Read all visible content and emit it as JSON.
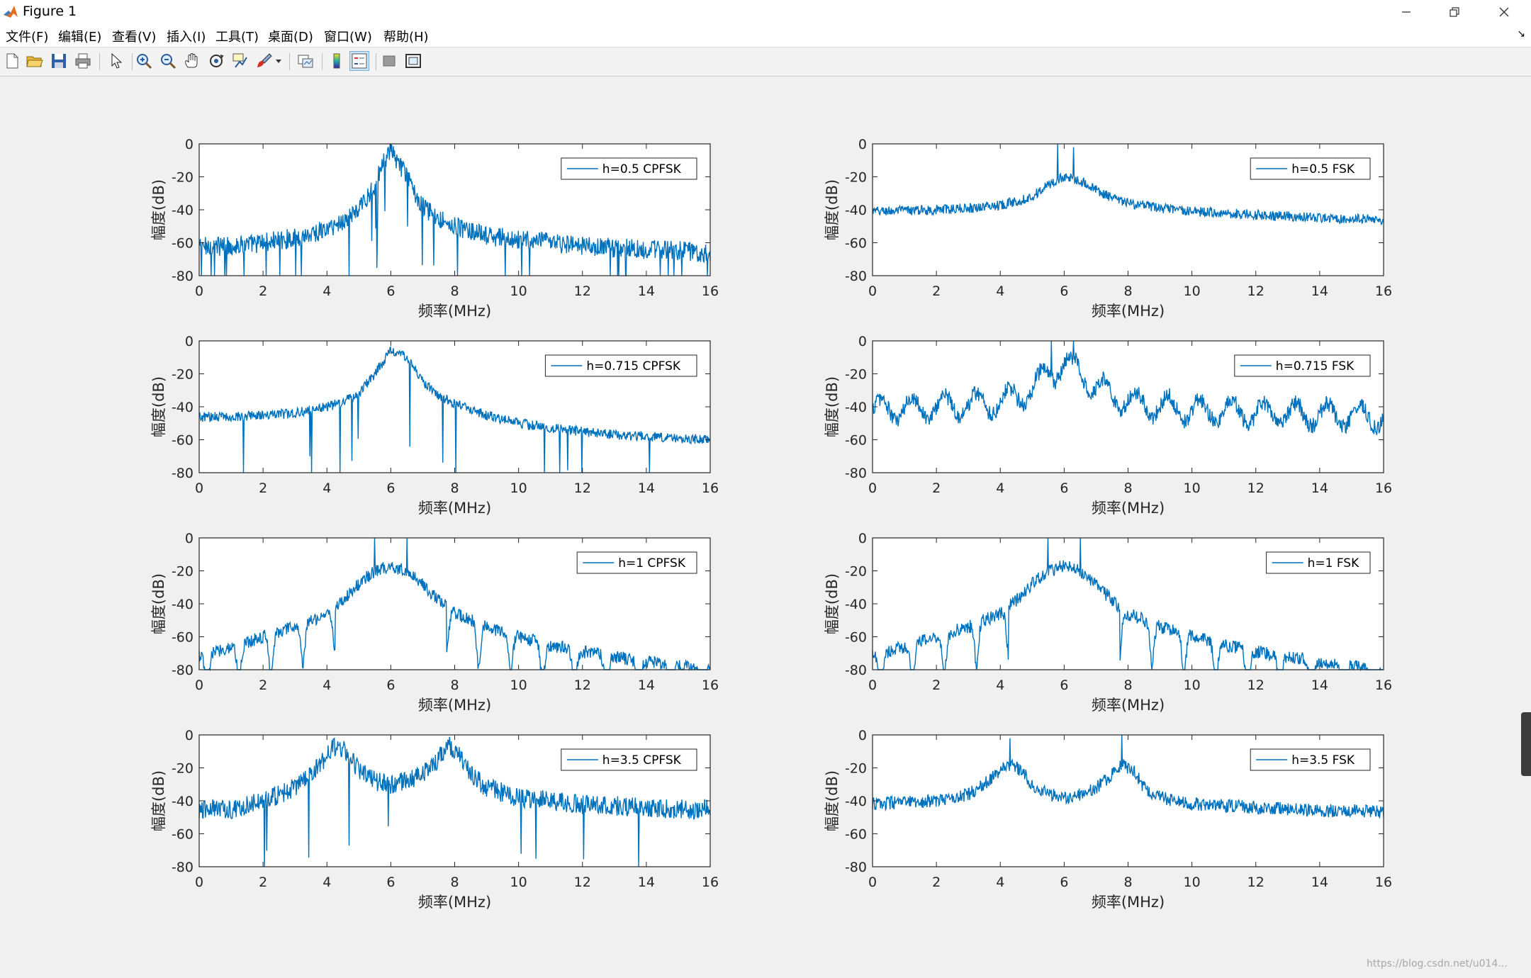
{
  "window": {
    "title": "Figure 1",
    "controls": [
      "minimize",
      "restore",
      "close"
    ]
  },
  "menu": {
    "items": [
      "文件(F)",
      "编辑(E)",
      "查看(V)",
      "插入(I)",
      "工具(T)",
      "桌面(D)",
      "窗口(W)",
      "帮助(H)"
    ],
    "overflow_icon": "dock-arrow-icon"
  },
  "toolbar": {
    "buttons": [
      {
        "name": "new-figure",
        "icon": "new-file-icon"
      },
      {
        "name": "open-file",
        "icon": "folder-open-icon"
      },
      {
        "name": "save-figure",
        "icon": "save-icon"
      },
      {
        "name": "print-figure",
        "icon": "printer-icon"
      },
      {
        "name": "edit-plot",
        "icon": "pointer-arrow-icon"
      },
      {
        "name": "zoom-in",
        "icon": "zoom-in-icon"
      },
      {
        "name": "zoom-out",
        "icon": "zoom-out-icon"
      },
      {
        "name": "pan",
        "icon": "hand-icon"
      },
      {
        "name": "rotate-3d",
        "icon": "rotate-icon"
      },
      {
        "name": "data-cursor",
        "icon": "data-tip-icon"
      },
      {
        "name": "brush",
        "icon": "brush-icon"
      },
      {
        "name": "link-plot",
        "icon": "link-plot-icon"
      },
      {
        "name": "insert-colorbar",
        "icon": "colorbar-icon"
      },
      {
        "name": "insert-legend",
        "icon": "legend-icon"
      },
      {
        "name": "hide-plot-tools",
        "icon": "hide-tools-icon"
      },
      {
        "name": "show-plot-tools",
        "icon": "show-tools-icon"
      }
    ]
  },
  "colors": {
    "line": "#0072bd",
    "figure_bg": "#f0f0f0",
    "axes_bg": "#ffffff"
  },
  "chart_data": [
    {
      "type": "line",
      "legend": "h=0.5 CPFSK",
      "xlabel": "频率(MHz)",
      "ylabel": "幅度(dB)",
      "xlim": [
        0,
        16
      ],
      "ylim": [
        -80,
        0
      ],
      "xticks": [
        0,
        2,
        4,
        6,
        8,
        10,
        12,
        14,
        16
      ],
      "yticks": [
        0,
        -20,
        -40,
        -60,
        -80
      ],
      "legend_position": "top-right",
      "profile": {
        "x": [
          0,
          1,
          2,
          3,
          4,
          4.5,
          5,
          5.5,
          5.8,
          6,
          6.2,
          6.5,
          7,
          7.5,
          8,
          9,
          10,
          11,
          12,
          13,
          14,
          15,
          16
        ],
        "y": [
          -62,
          -62,
          -60,
          -57,
          -52,
          -47,
          -40,
          -25,
          -10,
          -5,
          -10,
          -20,
          -38,
          -45,
          -50,
          -56,
          -58,
          -60,
          -62,
          -63,
          -64,
          -65,
          -66
        ]
      },
      "noise": 6,
      "nulls": 40,
      "spikes": []
    },
    {
      "type": "line",
      "legend": "h=0.5 FSK",
      "xlabel": "频率(MHz)",
      "ylabel": "幅度(dB)",
      "xlim": [
        0,
        16
      ],
      "ylim": [
        -80,
        0
      ],
      "xticks": [
        0,
        2,
        4,
        6,
        8,
        10,
        12,
        14,
        16
      ],
      "yticks": [
        0,
        -20,
        -40,
        -60,
        -80
      ],
      "legend_position": "top-right",
      "profile": {
        "x": [
          0,
          2,
          3,
          4,
          4.5,
          5,
          5.5,
          6,
          6.5,
          7,
          7.5,
          8,
          9,
          10,
          12,
          14,
          16
        ],
        "y": [
          -41,
          -40,
          -39,
          -37,
          -35,
          -32,
          -25,
          -20,
          -22,
          -28,
          -33,
          -36,
          -39,
          -41,
          -43,
          -45,
          -46
        ]
      },
      "noise": 3,
      "nulls": 0,
      "spikes": [
        {
          "x": 5.8,
          "y": 0
        },
        {
          "x": 6.3,
          "y": -2
        }
      ]
    },
    {
      "type": "line",
      "legend": "h=0.715 CPFSK",
      "xlabel": "频率(MHz)",
      "ylabel": "幅度(dB)",
      "xlim": [
        0,
        16
      ],
      "ylim": [
        -80,
        0
      ],
      "xticks": [
        0,
        2,
        4,
        6,
        8,
        10,
        12,
        14,
        16
      ],
      "yticks": [
        0,
        -20,
        -40,
        -60,
        -80
      ],
      "legend_position": "top-right",
      "profile": {
        "x": [
          0,
          1,
          2,
          3,
          4,
          4.5,
          5,
          5.5,
          6,
          6.5,
          7,
          7.5,
          8,
          9,
          10,
          11,
          12,
          13,
          14,
          15,
          16
        ],
        "y": [
          -46,
          -46,
          -45,
          -44,
          -40,
          -37,
          -32,
          -20,
          -6,
          -10,
          -25,
          -33,
          -38,
          -45,
          -50,
          -53,
          -55,
          -57,
          -58,
          -59,
          -60
        ]
      },
      "noise": 3,
      "nulls": 12,
      "spikes": []
    },
    {
      "type": "line",
      "legend": "h=0.715 FSK",
      "xlabel": "频率(MHz)",
      "ylabel": "幅度(dB)",
      "xlim": [
        0,
        16
      ],
      "ylim": [
        -80,
        0
      ],
      "xticks": [
        0,
        2,
        4,
        6,
        8,
        10,
        12,
        14,
        16
      ],
      "yticks": [
        0,
        -20,
        -40,
        -60,
        -80
      ],
      "legend_position": "top-right",
      "profile": {
        "x": [
          0,
          2,
          4,
          5,
          5.5,
          6,
          6.5,
          7,
          8,
          10,
          12,
          14,
          16
        ],
        "y": [
          -42,
          -40,
          -37,
          -30,
          -20,
          -15,
          -18,
          -28,
          -37,
          -42,
          -44,
          -45,
          -46
        ]
      },
      "noise": 5,
      "nulls": 0,
      "spikes": [
        {
          "x": 5.6,
          "y": 0
        },
        {
          "x": 6.3,
          "y": 0
        }
      ],
      "ripple": {
        "amp": 7,
        "period": 1
      }
    },
    {
      "type": "line",
      "legend": "h=1 CPFSK",
      "xlabel": "频率(MHz)",
      "ylabel": "幅度(dB)",
      "xlim": [
        0,
        16
      ],
      "ylim": [
        -80,
        0
      ],
      "xticks": [
        0,
        2,
        4,
        6,
        8,
        10,
        12,
        14,
        16
      ],
      "yticks": [
        0,
        -20,
        -40,
        -60,
        -80
      ],
      "legend_position": "top-right",
      "profile": {
        "x": [
          0,
          1,
          2,
          3,
          4,
          4.5,
          5,
          5.5,
          6,
          6.5,
          7,
          7.5,
          8,
          9,
          10,
          11,
          12,
          13,
          14,
          15,
          16
        ],
        "y": [
          -72,
          -66,
          -60,
          -54,
          -46,
          -38,
          -28,
          -20,
          -17,
          -20,
          -28,
          -38,
          -46,
          -54,
          -60,
          -65,
          -69,
          -72,
          -75,
          -78,
          -80
        ]
      },
      "noise": 4,
      "nulls": 0,
      "spikes": [
        {
          "x": 5.5,
          "y": 0
        },
        {
          "x": 6.5,
          "y": 0
        }
      ],
      "lobes": {
        "center": 6,
        "halfwidth": 1.75,
        "spacing": 1
      }
    },
    {
      "type": "line",
      "legend": "h=1 FSK",
      "xlabel": "频率(MHz)",
      "ylabel": "幅度(dB)",
      "xlim": [
        0,
        16
      ],
      "ylim": [
        -80,
        0
      ],
      "xticks": [
        0,
        2,
        4,
        6,
        8,
        10,
        12,
        14,
        16
      ],
      "yticks": [
        0,
        -20,
        -40,
        -60,
        -80
      ],
      "legend_position": "top-right",
      "profile": {
        "x": [
          0,
          1,
          2,
          3,
          4,
          4.5,
          5,
          5.5,
          6,
          6.5,
          7,
          7.5,
          8,
          9,
          10,
          11,
          12,
          13,
          14,
          15,
          16
        ],
        "y": [
          -72,
          -66,
          -60,
          -54,
          -46,
          -38,
          -28,
          -20,
          -17,
          -20,
          -28,
          -38,
          -46,
          -54,
          -60,
          -65,
          -69,
          -72,
          -75,
          -78,
          -80
        ]
      },
      "noise": 4,
      "nulls": 0,
      "spikes": [
        {
          "x": 5.5,
          "y": 0
        },
        {
          "x": 6.5,
          "y": 0
        }
      ],
      "lobes": {
        "center": 6,
        "halfwidth": 1.75,
        "spacing": 1
      }
    },
    {
      "type": "line",
      "legend": "h=3.5 CPFSK",
      "xlabel": "频率(MHz)",
      "ylabel": "幅度(dB)",
      "xlim": [
        0,
        16
      ],
      "ylim": [
        -80,
        0
      ],
      "xticks": [
        0,
        2,
        4,
        6,
        8,
        10,
        12,
        14,
        16
      ],
      "yticks": [
        0,
        -20,
        -40,
        -60,
        -80
      ],
      "legend_position": "top-right",
      "profile": {
        "x": [
          0,
          1,
          2,
          3,
          3.5,
          4,
          4.3,
          4.7,
          5,
          5.5,
          6,
          6.5,
          7,
          7.5,
          7.8,
          8.2,
          8.5,
          9,
          10,
          11,
          12,
          13,
          14,
          15,
          16
        ],
        "y": [
          -45,
          -45,
          -40,
          -32,
          -25,
          -12,
          -6,
          -12,
          -22,
          -28,
          -30,
          -28,
          -24,
          -14,
          -6,
          -12,
          -24,
          -32,
          -38,
          -40,
          -42,
          -43,
          -44,
          -45,
          -45
        ]
      },
      "noise": 6,
      "nulls": 6,
      "spikes": []
    },
    {
      "type": "line",
      "legend": "h=3.5 FSK",
      "xlabel": "频率(MHz)",
      "ylabel": "幅度(dB)",
      "xlim": [
        0,
        16
      ],
      "ylim": [
        -80,
        0
      ],
      "xticks": [
        0,
        2,
        4,
        6,
        8,
        10,
        12,
        14,
        16
      ],
      "yticks": [
        0,
        -20,
        -40,
        -60,
        -80
      ],
      "legend_position": "top-right",
      "profile": {
        "x": [
          0,
          1,
          2,
          3,
          3.5,
          4,
          4.3,
          4.7,
          5,
          5.5,
          6,
          6.5,
          7,
          7.5,
          7.8,
          8.2,
          8.5,
          9,
          10,
          11,
          12,
          13,
          14,
          15,
          16
        ],
        "y": [
          -42,
          -41,
          -40,
          -36,
          -30,
          -22,
          -18,
          -22,
          -30,
          -36,
          -38,
          -36,
          -32,
          -24,
          -18,
          -22,
          -32,
          -38,
          -42,
          -43,
          -44,
          -45,
          -46,
          -46,
          -47
        ]
      },
      "noise": 4,
      "nulls": 0,
      "spikes": [
        {
          "x": 4.3,
          "y": -2
        },
        {
          "x": 7.8,
          "y": 0
        }
      ]
    }
  ]
}
